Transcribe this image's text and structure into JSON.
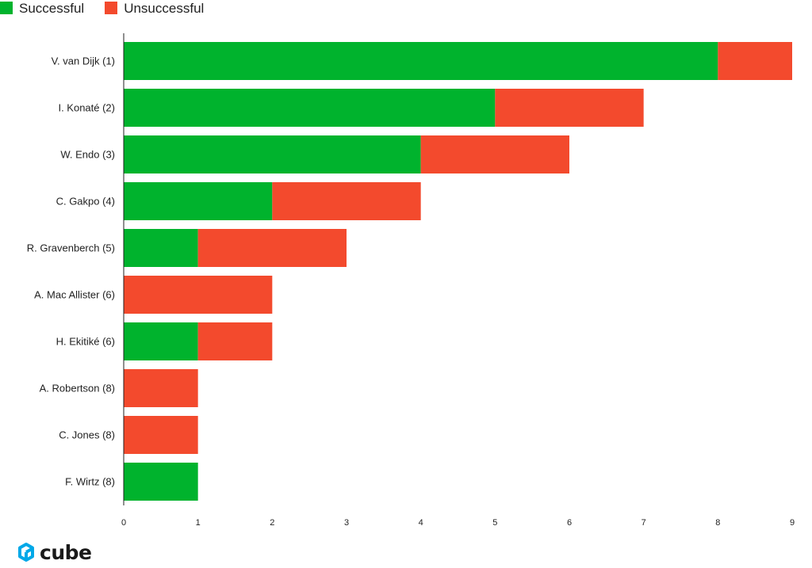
{
  "legend": {
    "successful_label": "Successful",
    "unsuccessful_label": "Unsuccessful"
  },
  "colors": {
    "successful": "#00b32d",
    "unsuccessful": "#f34a2d"
  },
  "brand": {
    "name": "cube",
    "logo_icon": "cube-logo-icon"
  },
  "chart_data": {
    "type": "bar",
    "orientation": "horizontal",
    "stacked": true,
    "categories": [
      "V. van Dijk (1)",
      "I. Konaté (2)",
      "W. Endo (3)",
      "C. Gakpo (4)",
      "R. Gravenberch (5)",
      "A. Mac Allister (6)",
      "H. Ekitiké (6)",
      "A. Robertson (8)",
      "C. Jones (8)",
      "F. Wirtz (8)"
    ],
    "series": [
      {
        "name": "Successful",
        "values": [
          8,
          5,
          4,
          2,
          1,
          0,
          1,
          0,
          0,
          1
        ]
      },
      {
        "name": "Unsuccessful",
        "values": [
          1,
          2,
          2,
          2,
          2,
          2,
          1,
          1,
          1,
          0
        ]
      }
    ],
    "xticks": [
      "0",
      "1",
      "2",
      "3",
      "4",
      "5",
      "6",
      "7",
      "8",
      "9"
    ],
    "xlim": [
      0,
      9
    ],
    "legend_position": "top-left",
    "grid": false
  }
}
